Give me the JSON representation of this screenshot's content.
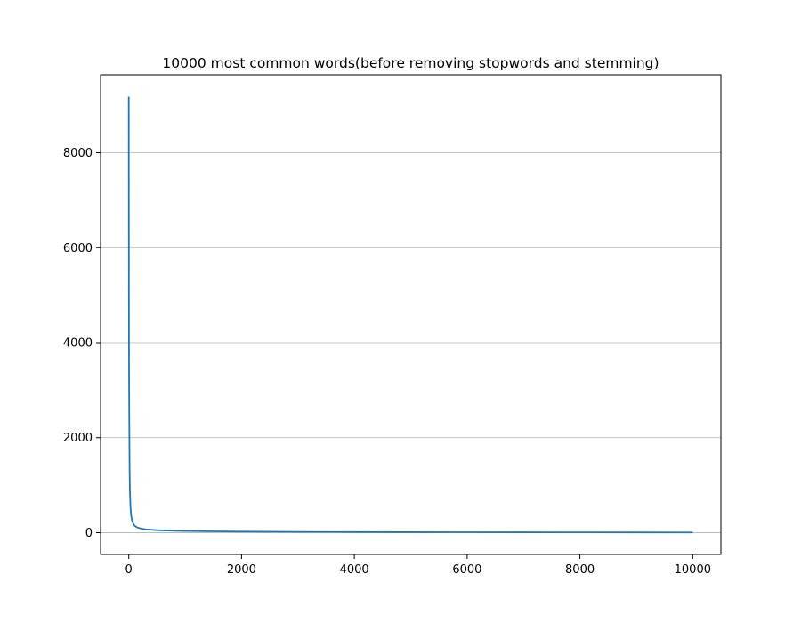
{
  "chart_data": {
    "type": "line",
    "title": "10000 most common words(before removing stopwords and stemming)",
    "xlabel": "",
    "ylabel": "",
    "xlim": [
      -500,
      10500
    ],
    "ylim": [
      -460,
      9640
    ],
    "x_ticks": [
      0,
      2000,
      4000,
      6000,
      8000,
      10000
    ],
    "x_tick_labels": [
      "0",
      "2000",
      "4000",
      "6000",
      "8000",
      "10000"
    ],
    "y_ticks": [
      0,
      2000,
      4000,
      6000,
      8000
    ],
    "y_tick_labels": [
      "0",
      "2000",
      "4000",
      "6000",
      "8000"
    ],
    "grid": "y-major",
    "line_color": "#1f77b4",
    "grid_color": "#b0b0b0",
    "series": [
      {
        "x": [
          0,
          2,
          5,
          10,
          15,
          20,
          30,
          40,
          60,
          80,
          100,
          150,
          200,
          300,
          500,
          800,
          1000,
          1500,
          2000,
          3000,
          4000,
          5000,
          6000,
          7000,
          8000,
          9000,
          10000
        ],
        "values": [
          9180,
          5200,
          3300,
          2200,
          1300,
          900,
          560,
          380,
          250,
          190,
          150,
          110,
          90,
          70,
          52,
          40,
          34,
          27,
          22,
          16,
          12,
          10,
          8,
          7,
          6,
          5,
          4
        ]
      }
    ]
  }
}
